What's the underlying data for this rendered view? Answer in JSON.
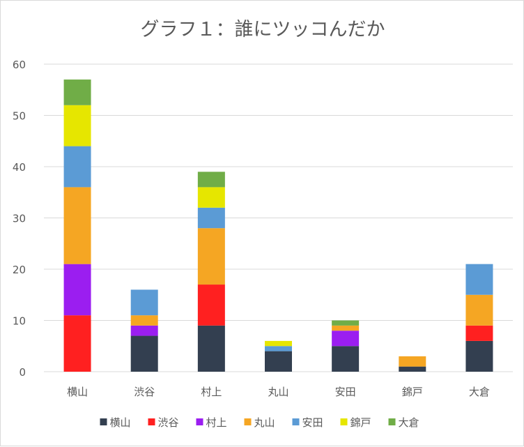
{
  "chart_data": {
    "type": "bar",
    "stacked": true,
    "title": "グラフ１：誰にツッコんだか",
    "xlabel": "",
    "ylabel": "",
    "ylim": [
      0,
      60
    ],
    "yticks": [
      0,
      10,
      20,
      30,
      40,
      50,
      60
    ],
    "grid": true,
    "legend_position": "bottom",
    "categories": [
      "横山",
      "渋谷",
      "村上",
      "丸山",
      "安田",
      "錦戸",
      "大倉"
    ],
    "series": [
      {
        "name": "横山",
        "color": "#333f50",
        "values": [
          0,
          7,
          9,
          4,
          5,
          1,
          6
        ]
      },
      {
        "name": "渋谷",
        "color": "#ff2020",
        "values": [
          11,
          0,
          8,
          0,
          0,
          0,
          3
        ]
      },
      {
        "name": "村上",
        "color": "#9b1ef0",
        "values": [
          10,
          2,
          0,
          0,
          3,
          0,
          0
        ]
      },
      {
        "name": "丸山",
        "color": "#f5a623",
        "values": [
          15,
          2,
          11,
          0,
          1,
          2,
          6
        ]
      },
      {
        "name": "安田",
        "color": "#5b9bd5",
        "values": [
          8,
          5,
          4,
          1,
          0,
          0,
          6
        ]
      },
      {
        "name": "錦戸",
        "color": "#e6e600",
        "values": [
          8,
          0,
          4,
          1,
          0,
          0,
          0
        ]
      },
      {
        "name": "大倉",
        "color": "#70ad47",
        "values": [
          5,
          0,
          3,
          0,
          1,
          0,
          0
        ]
      }
    ]
  }
}
